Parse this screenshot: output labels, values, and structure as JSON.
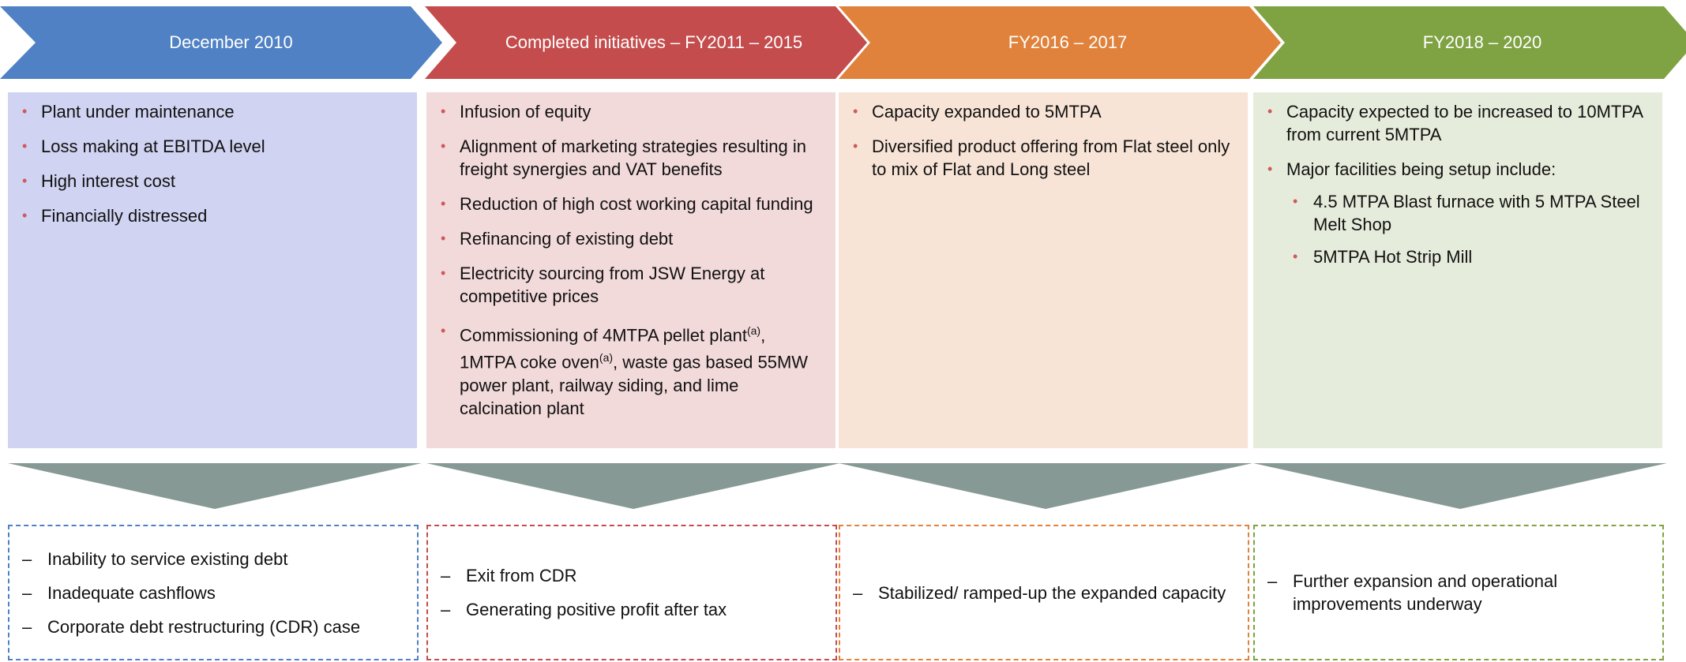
{
  "columns": [
    {
      "header": "December 2010",
      "color": "#4f81c4",
      "fill": "#d0d3f1",
      "outcome_color": "#4f81c4",
      "bullets": [
        {
          "text": "Plant under maintenance"
        },
        {
          "text": "Loss making at EBITDA level"
        },
        {
          "text": "High interest cost"
        },
        {
          "text": "Financially distressed"
        }
      ],
      "outcomes": [
        "Inability to service existing debt",
        "Inadequate cashflows",
        "Corporate debt restructuring (CDR) case"
      ]
    },
    {
      "header": "Completed initiatives – FY2011 – 2015",
      "color": "#c44c4d",
      "fill": "#f2d9da",
      "outcome_color": "#c44c4d",
      "bullets": [
        {
          "text": "Infusion of equity"
        },
        {
          "text": "Alignment of marketing strategies resulting in freight synergies and VAT benefits"
        },
        {
          "text": "Reduction of high cost working capital funding"
        },
        {
          "text": "Refinancing of existing debt"
        },
        {
          "text": "Electricity sourcing from JSW Energy at competitive prices"
        },
        {
          "parts": [
            {
              "text": "Commissioning of 4MTPA pellet plant"
            },
            {
              "sup": "(a)"
            },
            {
              "text": ", 1MTPA coke oven"
            },
            {
              "sup": "(a)"
            },
            {
              "text": ", waste gas based 55MW power plant, railway siding, and lime calcination plant"
            }
          ]
        }
      ],
      "outcomes": [
        "Exit from CDR",
        "Generating positive profit after tax"
      ]
    },
    {
      "header": "FY2016 – 2017",
      "color": "#e0823b",
      "fill": "#f8e4d6",
      "outcome_color": "#e0823b",
      "bullets": [
        {
          "text": "Capacity expanded to 5MTPA"
        },
        {
          "text": "Diversified product offering from Flat steel only to mix of Flat and Long steel"
        }
      ],
      "outcomes": [
        "Stabilized/ ramped-up the expanded capacity"
      ]
    },
    {
      "header": "FY2018 – 2020",
      "color": "#7fa243",
      "fill": "#e6ecdb",
      "outcome_color": "#7fa243",
      "bullets": [
        {
          "text": "Capacity expected to be increased to 10MTPA from current 5MTPA"
        },
        {
          "text": "Major facilities being setup include:",
          "sub": [
            "4.5 MTPA Blast furnace with 5 MTPA Steel Melt Shop",
            "5MTPA Hot Strip Mill"
          ]
        }
      ],
      "outcomes": [
        "Further expansion and operational improvements underway"
      ]
    }
  ]
}
